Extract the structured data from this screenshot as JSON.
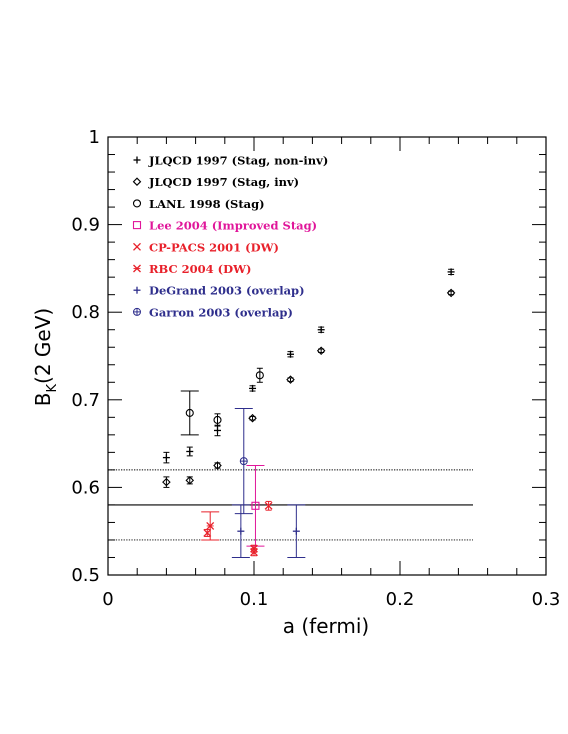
{
  "chart_data": {
    "type": "scatter",
    "xlabel": "a (fermi)",
    "ylabel": "B",
    "ylabel_sub": "K",
    "ylabel_tail": "(2 GeV)",
    "xlim": [
      0,
      0.3
    ],
    "ylim": [
      0.5,
      1.0
    ],
    "x_ticks": [
      {
        "value": 0,
        "label": "0"
      },
      {
        "value": 0.1,
        "label": "0.1"
      },
      {
        "value": 0.2,
        "label": "0.2"
      },
      {
        "value": 0.3,
        "label": "0.3"
      }
    ],
    "y_ticks": [
      {
        "value": 0.5,
        "label": "0.5"
      },
      {
        "value": 0.6,
        "label": "0.6"
      },
      {
        "value": 0.7,
        "label": "0.7"
      },
      {
        "value": 0.8,
        "label": "0.8"
      },
      {
        "value": 0.9,
        "label": "0.9"
      },
      {
        "value": 1.0,
        "label": "1"
      }
    ],
    "legend_position": "top-left",
    "reference_lines": [
      {
        "y": 0.58,
        "x_range": [
          0,
          0.25
        ],
        "style": "solid"
      },
      {
        "y": 0.62,
        "x_range": [
          0,
          0.25
        ],
        "style": "dotted"
      },
      {
        "y": 0.54,
        "x_range": [
          0,
          0.25
        ],
        "style": "dotted"
      }
    ],
    "series": [
      {
        "name": "JLQCD 1997 (Stag, non-inv)",
        "marker": "plus",
        "color": "#000000",
        "points": [
          {
            "x": 0.04,
            "y": 0.634,
            "err": 0.006
          },
          {
            "x": 0.056,
            "y": 0.641,
            "err": 0.005
          },
          {
            "x": 0.075,
            "y": 0.665,
            "err": 0.006
          },
          {
            "x": 0.099,
            "y": 0.713,
            "err": 0.003
          },
          {
            "x": 0.125,
            "y": 0.752,
            "err": 0.003
          },
          {
            "x": 0.146,
            "y": 0.78,
            "err": 0.003
          },
          {
            "x": 0.235,
            "y": 0.846,
            "err": 0.003
          }
        ]
      },
      {
        "name": "JLQCD 1997 (Stag, inv)",
        "marker": "diamond",
        "color": "#000000",
        "points": [
          {
            "x": 0.04,
            "y": 0.606,
            "err": 0.006
          },
          {
            "x": 0.056,
            "y": 0.608,
            "err": 0.004
          },
          {
            "x": 0.075,
            "y": 0.625,
            "err": 0.003
          },
          {
            "x": 0.099,
            "y": 0.679,
            "err": 0.002
          },
          {
            "x": 0.125,
            "y": 0.723,
            "err": 0.002
          },
          {
            "x": 0.146,
            "y": 0.756,
            "err": 0.002
          },
          {
            "x": 0.235,
            "y": 0.822,
            "err": 0.002
          }
        ]
      },
      {
        "name": "LANL 1998 (Stag)",
        "marker": "circle",
        "color": "#000000",
        "points": [
          {
            "x": 0.056,
            "y": 0.685,
            "err": 0.025
          },
          {
            "x": 0.075,
            "y": 0.677,
            "err": 0.007
          },
          {
            "x": 0.104,
            "y": 0.728,
            "err": 0.008
          }
        ]
      },
      {
        "name": "Lee 2004 (Improved Stag)",
        "marker": "square",
        "color": "#e0169a",
        "points": [
          {
            "x": 0.101,
            "y": 0.579,
            "err": 0.046
          }
        ]
      },
      {
        "name": "CP-PACS 2001 (DW)",
        "marker": "cross",
        "color": "#e8202a",
        "points": [
          {
            "x": 0.068,
            "y": 0.548,
            "err": 0.004
          },
          {
            "x": 0.1,
            "y": 0.526,
            "err": 0.004
          },
          {
            "x": 0.11,
            "y": 0.579,
            "err": 0.005
          }
        ]
      },
      {
        "name": "RBC 2004 (DW)",
        "marker": "star",
        "color": "#e8202a",
        "points": [
          {
            "x": 0.07,
            "y": 0.556,
            "err": 0.016
          },
          {
            "x": 0.1,
            "y": 0.53,
            "err": 0.004
          }
        ]
      },
      {
        "name": "DeGrand 2003 (overlap)",
        "marker": "plus",
        "color": "#2e2e8c",
        "points": [
          {
            "x": 0.091,
            "y": 0.55,
            "err": 0.03
          },
          {
            "x": 0.129,
            "y": 0.55,
            "err": 0.03
          }
        ]
      },
      {
        "name": "Garron  2003 (overlap)",
        "marker": "circle-plus",
        "color": "#2e2e8c",
        "points": [
          {
            "x": 0.093,
            "y": 0.63,
            "err": 0.06
          }
        ]
      }
    ]
  }
}
